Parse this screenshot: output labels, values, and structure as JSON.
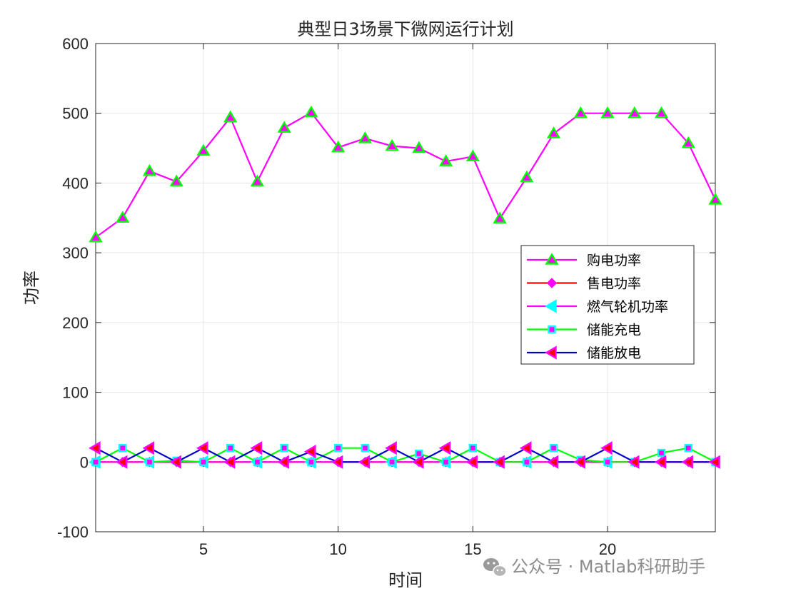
{
  "chart_data": {
    "type": "line",
    "title": "典型日3场景下微网运行计划",
    "xlabel": "时间",
    "ylabel": "功率",
    "xlim": [
      1,
      24
    ],
    "ylim": [
      -100,
      600
    ],
    "xticks": [
      5,
      10,
      15,
      20
    ],
    "yticks": [
      -100,
      0,
      100,
      200,
      300,
      400,
      500,
      600
    ],
    "grid": true,
    "legend_position": "center-right",
    "x": [
      1,
      2,
      3,
      4,
      5,
      6,
      7,
      8,
      9,
      10,
      11,
      12,
      13,
      14,
      15,
      16,
      17,
      18,
      19,
      20,
      21,
      22,
      23,
      24
    ],
    "series": [
      {
        "name": "购电功率",
        "line_color": "#ff00ff",
        "marker": "triangle-up",
        "marker_face": "#ff00ff",
        "marker_edge": "#00ff00",
        "values": [
          322,
          350,
          417,
          402,
          446,
          494,
          402,
          479,
          501,
          451,
          464,
          453,
          450,
          431,
          438,
          349,
          408,
          471,
          500,
          500,
          500,
          500,
          457,
          376
        ]
      },
      {
        "name": "售电功率",
        "line_color": "#ff0000",
        "marker": "diamond",
        "marker_face": "#ff00ff",
        "marker_edge": "#ff00ff",
        "values": [
          0,
          0,
          0,
          0,
          0,
          0,
          0,
          0,
          0,
          0,
          0,
          0,
          0,
          0,
          0,
          0,
          0,
          0,
          0,
          0,
          0,
          0,
          0,
          0
        ]
      },
      {
        "name": "燃气轮机功率",
        "line_color": "#ff00ff",
        "marker": "triangle-left",
        "marker_face": "#00ffff",
        "marker_edge": "#00ffff",
        "values": [
          0,
          0,
          0,
          0,
          0,
          0,
          0,
          0,
          0,
          0,
          0,
          0,
          0,
          0,
          0,
          0,
          0,
          0,
          0,
          0,
          0,
          0,
          0,
          0
        ]
      },
      {
        "name": "储能充电",
        "line_color": "#00ff00",
        "marker": "square",
        "marker_face": "#ff00ff",
        "marker_edge": "#00ffff",
        "values": [
          0,
          20,
          0,
          2,
          0,
          20,
          0,
          20,
          0,
          20,
          20,
          0,
          12,
          0,
          20,
          0,
          0,
          20,
          3,
          0,
          0,
          13,
          20,
          0
        ]
      },
      {
        "name": "储能放电",
        "line_color": "#0000cd",
        "marker": "triangle-left",
        "marker_face": "#ff0000",
        "marker_edge": "#ff00ff",
        "values": [
          20,
          0,
          20,
          0,
          20,
          0,
          20,
          0,
          15,
          0,
          0,
          20,
          0,
          20,
          0,
          0,
          20,
          0,
          0,
          20,
          0,
          0,
          0,
          0
        ]
      }
    ]
  },
  "watermark": {
    "icon": "wechat-icon",
    "text": "公众号 · Matlab科研助手"
  }
}
